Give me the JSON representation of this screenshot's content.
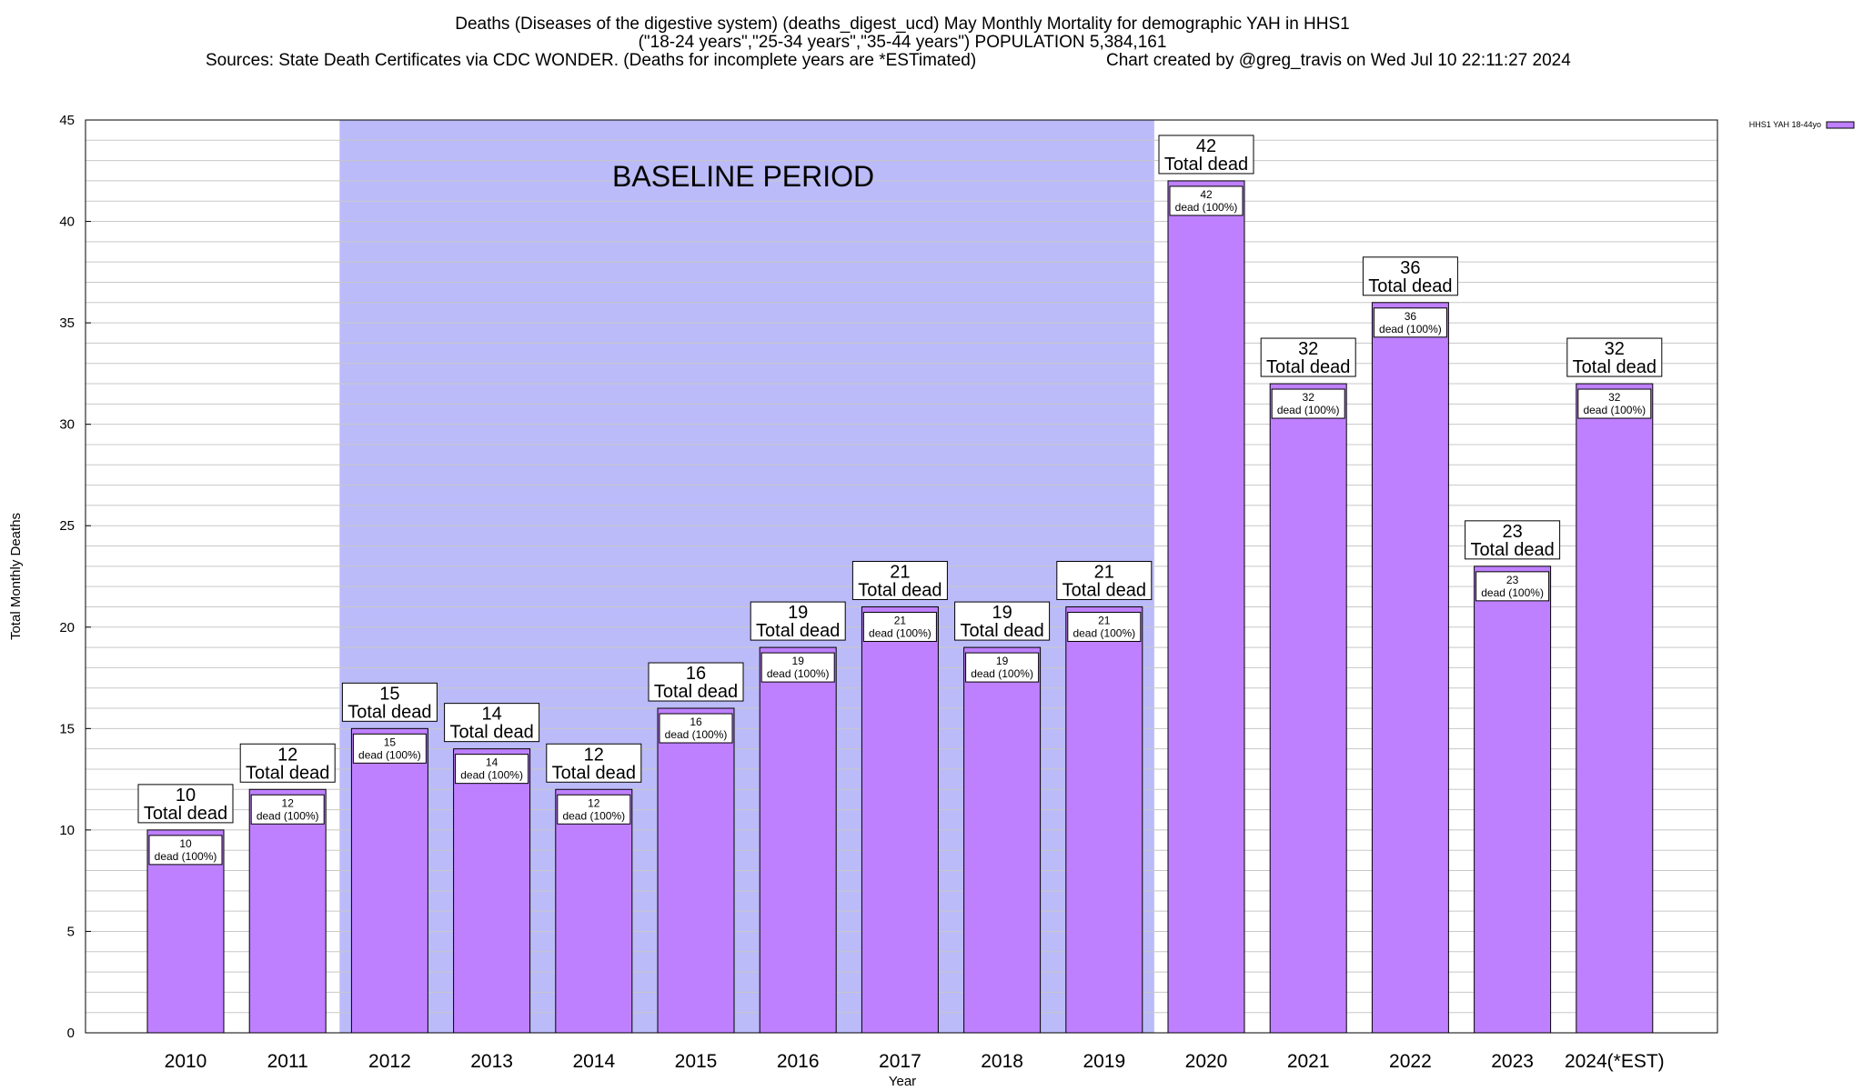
{
  "header": {
    "title_line1": "Deaths (Diseases of the digestive system) (deaths_digest_ucd) May Monthly Mortality for demographic YAH in HHS1",
    "title_line2": "(\"18-24 years\",\"25-34 years\",\"35-44 years\") POPULATION 5,384,161",
    "sources": "Sources: State Death Certificates via CDC WONDER. (Deaths for incomplete years are *ESTimated)",
    "credit": "Chart created by @greg_travis on Wed Jul 10 22:11:27 2024"
  },
  "colors": {
    "bar_fill": "#bf80ff",
    "bar_stroke": "#000000",
    "baseline_band": "#bbbbf9",
    "grid": "#c8c8c8"
  },
  "chart_data": {
    "type": "bar",
    "xlabel": "Year",
    "ylabel": "Total Monthly Deaths",
    "ylim": [
      0,
      45
    ],
    "y_ticks": [
      0,
      5,
      10,
      15,
      20,
      25,
      30,
      35,
      40,
      45
    ],
    "minor_grid_step": 1,
    "grid": true,
    "legend_position": "top-right",
    "categories": [
      "2010",
      "2011",
      "2012",
      "2013",
      "2014",
      "2015",
      "2016",
      "2017",
      "2018",
      "2019",
      "2020",
      "2021",
      "2022",
      "2023",
      "2024(*EST)"
    ],
    "series": [
      {
        "name": "HHS1 YAH 18-44yo",
        "values": [
          10,
          12,
          15,
          14,
          12,
          16,
          19,
          21,
          19,
          21,
          42,
          32,
          36,
          23,
          32
        ]
      }
    ],
    "top_label_suffix": "Total dead",
    "inner_label_suffix": "dead (100%)",
    "baseline_period": {
      "label": "BASELINE PERIOD",
      "start": "2012",
      "end": "2019"
    }
  }
}
